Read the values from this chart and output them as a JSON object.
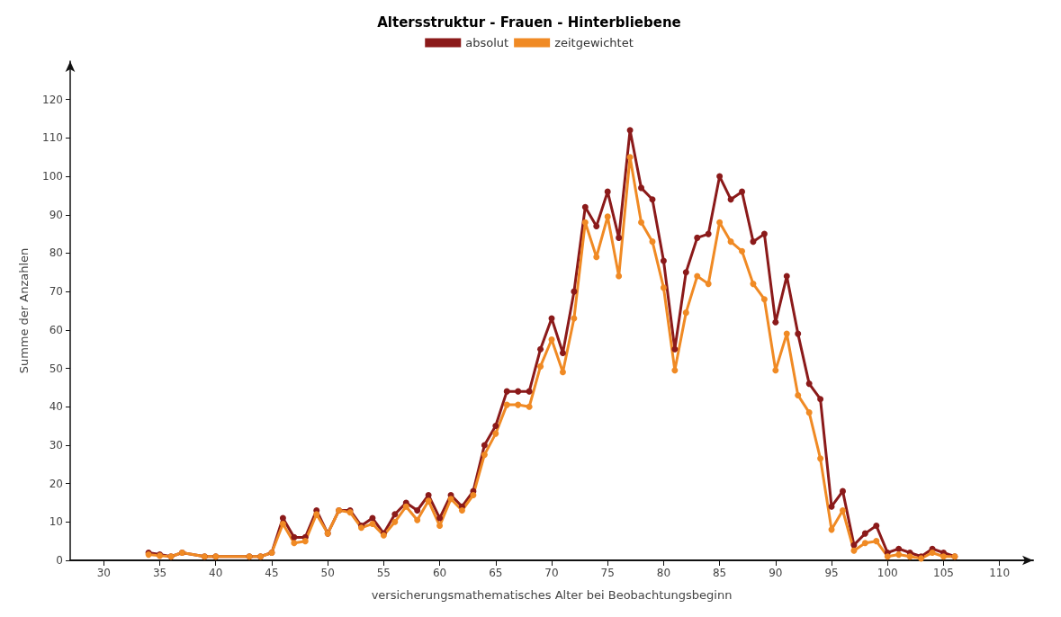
{
  "chart_data": {
    "type": "line",
    "title": "Altersstruktur - Frauen - Hinterbliebene",
    "xlabel": "versicherungsmathematisches Alter bei Beobachtungsbeginn",
    "ylabel": "Summe der Anzahlen",
    "x": [
      34,
      35,
      36,
      37,
      39,
      40,
      43,
      44,
      45,
      46,
      47,
      48,
      49,
      50,
      51,
      52,
      53,
      54,
      55,
      56,
      57,
      58,
      59,
      60,
      61,
      62,
      63,
      64,
      65,
      66,
      67,
      68,
      69,
      70,
      71,
      72,
      73,
      74,
      75,
      76,
      77,
      78,
      79,
      80,
      81,
      82,
      83,
      84,
      85,
      86,
      87,
      88,
      89,
      90,
      91,
      92,
      93,
      94,
      95,
      96,
      97,
      98,
      99,
      100,
      101,
      102,
      103,
      104,
      105,
      106
    ],
    "series": [
      {
        "name": "absolut",
        "color": "#8b1a1a",
        "values": [
          2,
          1.5,
          1,
          2,
          1,
          1,
          1,
          1,
          2,
          11,
          6,
          6,
          13,
          7,
          13,
          13,
          9,
          11,
          7,
          12,
          15,
          13,
          17,
          11,
          17,
          14,
          18,
          30,
          35,
          44,
          44,
          44,
          55,
          63,
          54,
          70,
          92,
          87,
          96,
          84,
          112,
          97,
          94,
          78,
          55,
          75,
          84,
          85,
          100,
          94,
          96,
          83,
          85,
          62,
          74,
          59,
          46,
          42,
          14,
          18,
          4,
          7,
          9,
          2,
          3,
          2,
          1,
          3,
          2,
          1
        ]
      },
      {
        "name": "zeitgewichtet",
        "color": "#f08a24",
        "values": [
          1.5,
          1.2,
          1,
          2,
          1,
          1,
          1,
          1,
          2,
          9.5,
          4.5,
          5,
          12,
          7,
          13,
          12.5,
          8.5,
          9.5,
          6.5,
          10,
          14,
          10.5,
          15.5,
          9,
          16,
          13,
          17,
          27.5,
          33,
          40.5,
          40.5,
          40,
          50.5,
          57.5,
          49,
          63,
          88,
          79,
          89.5,
          74,
          105,
          88,
          83,
          71,
          49.5,
          64.5,
          74,
          72,
          88,
          83,
          80.5,
          72,
          68,
          49.5,
          59,
          43,
          38.5,
          26.5,
          8,
          13,
          2.5,
          4.5,
          5,
          1,
          1.5,
          1,
          0.5,
          2,
          1,
          1
        ]
      }
    ],
    "xlim": [
      27,
      113
    ],
    "xticks": [
      30,
      35,
      40,
      45,
      50,
      55,
      60,
      65,
      70,
      75,
      80,
      85,
      90,
      95,
      100,
      105,
      110
    ],
    "ylim": [
      0,
      130
    ],
    "yticks": [
      0,
      10,
      20,
      30,
      40,
      50,
      60,
      70,
      80,
      90,
      100,
      110,
      120
    ],
    "grid": false,
    "legend": "top",
    "marker": "circle",
    "line_style": "solid"
  }
}
